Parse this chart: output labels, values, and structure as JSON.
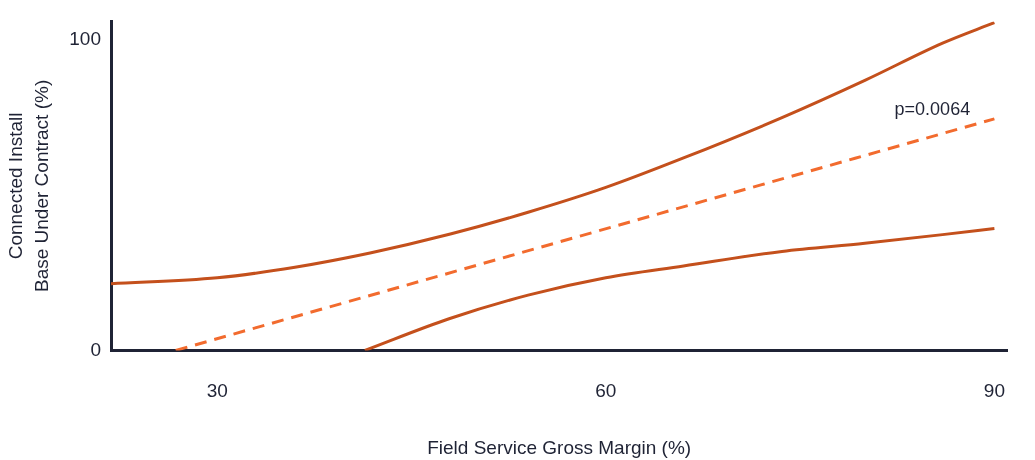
{
  "chart_data": {
    "type": "line",
    "xlabel": "Field Service Gross Margin (%)",
    "ylabel": "Connected Install\nBase Under Contract (%)",
    "xlim": [
      21.8,
      91
    ],
    "xticks": [
      30,
      60,
      90
    ],
    "ylim": [
      0,
      106
    ],
    "yticks": [
      0,
      100
    ],
    "grid": false,
    "legend": false,
    "marker": "none",
    "series": [
      {
        "color": "#c4501c",
        "line_style": "solid",
        "x": [
          21.8,
          30,
          36,
          41.8,
          48,
          54,
          60,
          66,
          73.6,
          80,
          86,
          90
        ],
        "values": [
          21.5,
          23.4,
          26.8,
          31.4,
          37.5,
          44.5,
          52.5,
          62,
          75,
          87,
          99,
          105.6
        ]
      },
      {
        "color": "#f26b2e",
        "line_style": "dashed",
        "x": [
          26.8,
          90
        ],
        "values": [
          0,
          74.6
        ]
      },
      {
        "color": "#c4501c",
        "line_style": "solid",
        "x": [
          41.4,
          47.9,
          54,
          60,
          66,
          73.6,
          80,
          86,
          90
        ],
        "values": [
          0,
          10.2,
          17.8,
          23.4,
          27.2,
          31.9,
          34.5,
          37.3,
          39.3
        ]
      }
    ],
    "annotations": [
      "p=0.0064"
    ]
  }
}
